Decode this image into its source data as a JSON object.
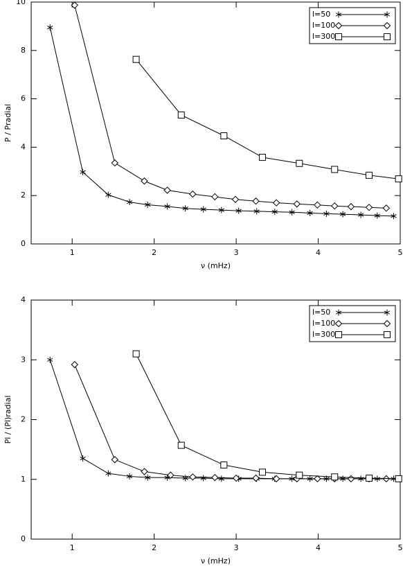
{
  "chart_data": [
    {
      "type": "line",
      "xlabel": "ν (mHz)",
      "ylabel": "P / Pradial",
      "xlim": [
        0.5,
        5
      ],
      "xticks": [
        1,
        2,
        3,
        4,
        5
      ],
      "ylim": [
        0,
        10
      ],
      "yticks": [
        0,
        2,
        4,
        6,
        8,
        10
      ],
      "legend": "upper right",
      "series": [
        {
          "name": "l=50",
          "color": "#000000",
          "marker": "star",
          "x": [
            0.73,
            1.13,
            1.44,
            1.7,
            1.92,
            2.16,
            2.38,
            2.6,
            2.82,
            3.03,
            3.25,
            3.47,
            3.68,
            3.9,
            4.1,
            4.3,
            4.52,
            4.72,
            4.92
          ],
          "values": [
            8.95,
            2.97,
            2.03,
            1.73,
            1.62,
            1.55,
            1.47,
            1.43,
            1.4,
            1.37,
            1.35,
            1.33,
            1.31,
            1.28,
            1.25,
            1.23,
            1.2,
            1.17,
            1.15
          ]
        },
        {
          "name": "l=100",
          "color": "#000000",
          "marker": "diamond",
          "x": [
            1.03,
            1.52,
            1.88,
            2.16,
            2.47,
            2.74,
            2.99,
            3.24,
            3.49,
            3.74,
            3.99,
            4.2,
            4.4,
            4.62,
            4.83
          ],
          "values": [
            9.87,
            3.35,
            2.6,
            2.22,
            2.06,
            1.95,
            1.84,
            1.77,
            1.7,
            1.65,
            1.61,
            1.57,
            1.54,
            1.51,
            1.48
          ]
        },
        {
          "name": "l=300",
          "color": "#000000",
          "marker": "square",
          "x": [
            1.78,
            2.33,
            2.85,
            3.32,
            3.77,
            4.2,
            4.62,
            4.98
          ],
          "values": [
            7.63,
            5.33,
            4.47,
            3.58,
            3.33,
            3.08,
            2.84,
            2.69
          ]
        }
      ]
    },
    {
      "type": "line",
      "xlabel": "ν (mHz)",
      "ylabel": "Pl / (Pl)radial",
      "xlim": [
        0.5,
        5
      ],
      "xticks": [
        1,
        2,
        3,
        4,
        5
      ],
      "ylim": [
        0,
        4
      ],
      "yticks": [
        0,
        1,
        2,
        3,
        4
      ],
      "legend": "upper right",
      "series": [
        {
          "name": "l=50",
          "color": "#000000",
          "marker": "star",
          "x": [
            0.73,
            1.13,
            1.44,
            1.7,
            1.92,
            2.16,
            2.38,
            2.6,
            2.82,
            3.03,
            3.25,
            3.47,
            3.68,
            3.9,
            4.1,
            4.3,
            4.52,
            4.72,
            4.92
          ],
          "values": [
            3.0,
            1.35,
            1.1,
            1.05,
            1.03,
            1.03,
            1.02,
            1.02,
            1.01,
            1.01,
            1.01,
            1.01,
            1.01,
            1.01,
            1.01,
            1.01,
            1.01,
            1.01,
            1.01
          ]
        },
        {
          "name": "l=100",
          "color": "#000000",
          "marker": "diamond",
          "x": [
            1.03,
            1.52,
            1.88,
            2.2,
            2.47,
            2.74,
            3.0,
            3.24,
            3.49,
            3.74,
            3.99,
            4.2,
            4.4,
            4.62,
            4.83
          ],
          "values": [
            2.92,
            1.33,
            1.13,
            1.07,
            1.04,
            1.03,
            1.02,
            1.02,
            1.01,
            1.01,
            1.01,
            1.01,
            1.01,
            1.01,
            1.01
          ]
        },
        {
          "name": "l=300",
          "color": "#000000",
          "marker": "square",
          "x": [
            1.78,
            2.33,
            2.85,
            3.32,
            3.77,
            4.2,
            4.62,
            4.98
          ],
          "values": [
            3.1,
            1.57,
            1.24,
            1.12,
            1.07,
            1.04,
            1.02,
            1.01
          ]
        }
      ]
    }
  ]
}
